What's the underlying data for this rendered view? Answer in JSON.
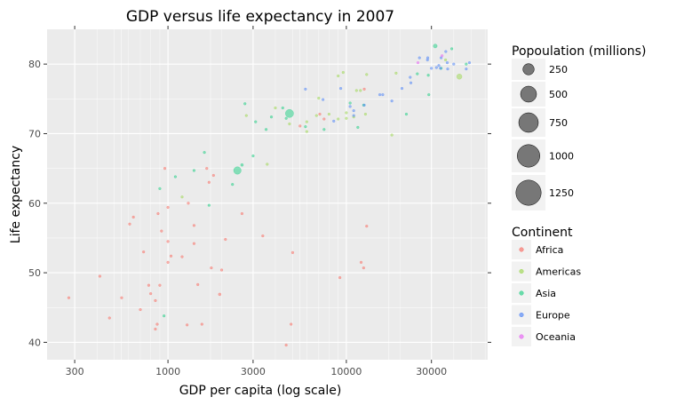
{
  "chart_data": {
    "type": "scatter",
    "title": "GDP versus life expectancy in 2007",
    "xlabel": "GDP per capita (log scale)",
    "ylabel": "Life expectancy",
    "x_scale": "log",
    "xlim": [
      210,
      62000
    ],
    "ylim": [
      37.5,
      85
    ],
    "x_ticks": [
      300,
      1000,
      3000,
      10000,
      30000
    ],
    "y_ticks": [
      40,
      50,
      60,
      70,
      80
    ],
    "size_legend_title": "Popoulation (millions)",
    "size_legend": [
      250,
      500,
      750,
      1000,
      1250
    ],
    "color_legend_title": "Continent",
    "grid": true,
    "legend_position": "right",
    "colors": {
      "Africa": "#F8766D",
      "Americas": "#A3D95C",
      "Asia": "#2FD18C",
      "Europe": "#5B8DF6",
      "Oceania": "#E76BF3"
    },
    "series": [
      {
        "name": "Africa",
        "points": [
          [
            278,
            46.4,
            8
          ],
          [
            415,
            49.5,
            3
          ],
          [
            470,
            43.5,
            4
          ],
          [
            640,
            58,
            3
          ],
          [
            610,
            57,
            3
          ],
          [
            550,
            46.4,
            3
          ],
          [
            700,
            44.7,
            3
          ],
          [
            730,
            53,
            12
          ],
          [
            780,
            48.2,
            4
          ],
          [
            800,
            47,
            4
          ],
          [
            850,
            46,
            4
          ],
          [
            850,
            41.9,
            6
          ],
          [
            870,
            42.6,
            4
          ],
          [
            880,
            58.5,
            3
          ],
          [
            900,
            48.2,
            4
          ],
          [
            920,
            56,
            3
          ],
          [
            960,
            65,
            2
          ],
          [
            1000,
            59.4,
            4
          ],
          [
            1000,
            51.5,
            5
          ],
          [
            1000,
            54.5,
            3
          ],
          [
            1040,
            52.4,
            8
          ],
          [
            1200,
            52.3,
            4
          ],
          [
            1280,
            42.5,
            4
          ],
          [
            1300,
            60,
            4
          ],
          [
            1400,
            54.2,
            5
          ],
          [
            1400,
            56.8,
            3
          ],
          [
            1470,
            48.3,
            5
          ],
          [
            1550,
            42.6,
            2
          ],
          [
            1650,
            65,
            2
          ],
          [
            1700,
            63,
            3
          ],
          [
            1750,
            50.7,
            3
          ],
          [
            1800,
            64,
            2
          ],
          [
            1950,
            46.9,
            15
          ],
          [
            2000,
            50.4,
            3
          ],
          [
            2100,
            54.8,
            1
          ],
          [
            2600,
            58.5,
            6
          ],
          [
            3400,
            55.3,
            3
          ],
          [
            4600,
            39.6,
            2
          ],
          [
            4900,
            42.6,
            3
          ],
          [
            5000,
            52.9,
            2
          ],
          [
            5500,
            71.1,
            6
          ],
          [
            7100,
            72.8,
            1
          ],
          [
            7500,
            72.1,
            2
          ],
          [
            9200,
            49.3,
            6
          ],
          [
            12100,
            51.5,
            2
          ],
          [
            12500,
            50.7,
            2
          ],
          [
            12600,
            76.4,
            2
          ],
          [
            13000,
            56.7,
            2
          ]
        ]
      },
      {
        "name": "Americas",
        "points": [
          [
            1200,
            60.9,
            3
          ],
          [
            2750,
            72.6,
            2
          ],
          [
            3600,
            65.6,
            3
          ],
          [
            4000,
            73.7,
            4
          ],
          [
            4800,
            71.4,
            2
          ],
          [
            6000,
            71.7,
            2
          ],
          [
            6000,
            70.3,
            2
          ],
          [
            6800,
            72.6,
            2
          ],
          [
            7000,
            75.1,
            3
          ],
          [
            8000,
            72.8,
            7
          ],
          [
            9000,
            72.1,
            2
          ],
          [
            9000,
            78.3,
            2
          ],
          [
            9600,
            78.8,
            2
          ],
          [
            10000,
            72.2,
            5
          ],
          [
            10000,
            73.0,
            4
          ],
          [
            11000,
            72.4,
            11
          ],
          [
            11400,
            76.2,
            2
          ],
          [
            12000,
            76.2,
            8
          ],
          [
            12800,
            72.8,
            4
          ],
          [
            13000,
            78.5,
            5
          ],
          [
            18000,
            69.8,
            2
          ],
          [
            19000,
            78.7,
            2
          ],
          [
            36000,
            80.6,
            8
          ],
          [
            43000,
            78.2,
            55
          ]
        ]
      },
      {
        "name": "Asia",
        "points": [
          [
            950,
            43.8,
            6
          ],
          [
            900,
            62.1,
            6
          ],
          [
            1100,
            63.8,
            4
          ],
          [
            1400,
            64.7,
            12
          ],
          [
            1600,
            67.3,
            4
          ],
          [
            1700,
            59.7,
            2
          ],
          [
            2300,
            62.7,
            3
          ],
          [
            2450,
            64.7,
            110
          ],
          [
            2600,
            65.5,
            15
          ],
          [
            2700,
            74.3,
            7
          ],
          [
            3000,
            66.8,
            2
          ],
          [
            3100,
            71.7,
            8
          ],
          [
            3550,
            70.6,
            12
          ],
          [
            3800,
            72.4,
            3
          ],
          [
            4400,
            73.7,
            3
          ],
          [
            4600,
            72.2,
            2
          ],
          [
            4800,
            72.9,
            130
          ],
          [
            5900,
            71,
            3
          ],
          [
            7500,
            70.6,
            6
          ],
          [
            10500,
            74.4,
            2
          ],
          [
            11600,
            70.9,
            6
          ],
          [
            12500,
            74.1,
            6
          ],
          [
            21700,
            72.8,
            5
          ],
          [
            25000,
            78.6,
            5
          ],
          [
            28800,
            78.4,
            2
          ],
          [
            29000,
            75.6,
            2
          ],
          [
            31500,
            82.6,
            30
          ],
          [
            34000,
            79.4,
            6
          ],
          [
            39000,
            82.2,
            2
          ],
          [
            47000,
            80.0,
            2
          ]
        ]
      },
      {
        "name": "Europe",
        "points": [
          [
            5900,
            76.4,
            2
          ],
          [
            7400,
            74.9,
            2
          ],
          [
            8500,
            71.8,
            8
          ],
          [
            9300,
            76.5,
            4
          ],
          [
            10500,
            73.9,
            2
          ],
          [
            11000,
            72.6,
            2
          ],
          [
            11000,
            73.3,
            2
          ],
          [
            12600,
            74.1,
            2
          ],
          [
            15400,
            75.6,
            6
          ],
          [
            16000,
            75.6,
            2
          ],
          [
            18000,
            74.7,
            2
          ],
          [
            20500,
            76.5,
            2
          ],
          [
            22800,
            78.1,
            4
          ],
          [
            23000,
            77.3,
            2
          ],
          [
            25700,
            80.9,
            3
          ],
          [
            28500,
            80.6,
            2
          ],
          [
            28600,
            80.9,
            5
          ],
          [
            30000,
            79.4,
            2
          ],
          [
            32000,
            79.5,
            8
          ],
          [
            33000,
            79.8,
            8
          ],
          [
            33700,
            79.4,
            2
          ],
          [
            34000,
            80.9,
            2
          ],
          [
            36100,
            81.8,
            7
          ],
          [
            36800,
            80.2,
            2
          ],
          [
            37000,
            79.3,
            2
          ],
          [
            40000,
            80.0,
            2
          ],
          [
            47000,
            79.3,
            2
          ],
          [
            49000,
            80.2,
            2
          ]
        ]
      },
      {
        "name": "Oceania",
        "points": [
          [
            25200,
            80.2,
            2
          ],
          [
            34400,
            81.2,
            2
          ]
        ]
      }
    ]
  }
}
